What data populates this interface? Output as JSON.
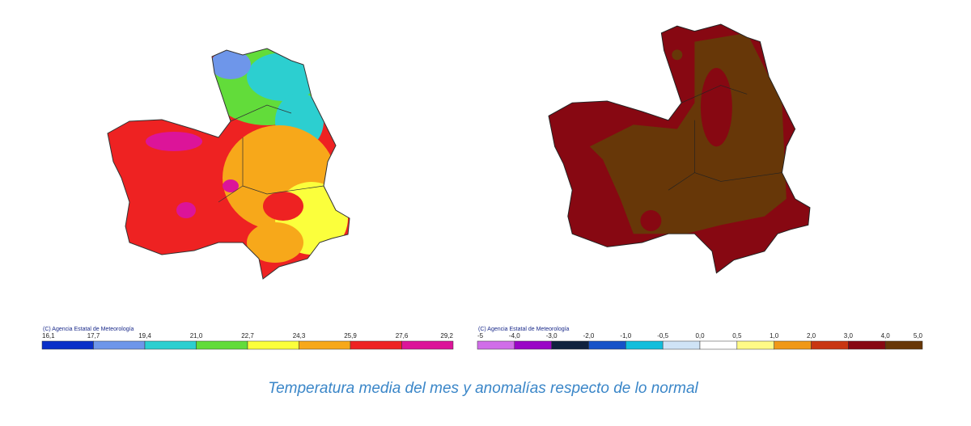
{
  "maps": [
    {
      "credit": "(C) Agencia Estatal de Meteorología",
      "legend": {
        "labels": [
          "16,1",
          "17,7",
          "19,4",
          "21,0",
          "22,7",
          "24,3",
          "25,9",
          "27,6",
          "29,2"
        ],
        "colors": [
          "#0a2fc8",
          "#6e96ea",
          "#2ccfd0",
          "#62dc3a",
          "#fbff3c",
          "#f7a81a",
          "#ee2222",
          "#dc1499"
        ]
      }
    },
    {
      "credit": "(C) Agencia Estatal de Meteorología",
      "legend": {
        "labels": [
          "-5",
          "-4,0",
          "-3,0",
          "-2,0",
          "-1,0",
          "-0,5",
          "0,0",
          "0,5",
          "1,0",
          "2,0",
          "3,0",
          "4,0",
          "5,0"
        ],
        "colors": [
          "#d06ee8",
          "#9a06c6",
          "#10223e",
          "#1652c8",
          "#12bedc",
          "#cfe3f6",
          "#ffffff",
          "#fffa86",
          "#f09818",
          "#c93612",
          "#870812",
          "#673708"
        ]
      }
    }
  ],
  "caption": "Temperatura media del mes y anomalías respecto de lo normal"
}
